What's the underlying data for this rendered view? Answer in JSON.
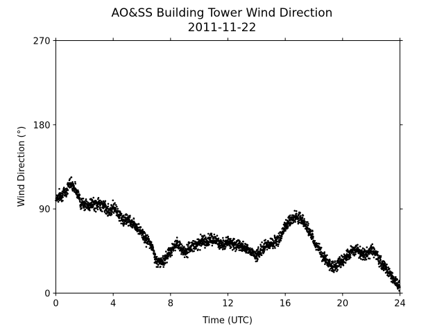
{
  "chart_data": {
    "type": "scatter",
    "title": "AO&SS Building Tower Wind Direction",
    "subtitle": "2011-11-22",
    "xlabel": "Time (UTC)",
    "ylabel": "Wind Direction (°)",
    "xlim": [
      0,
      24
    ],
    "ylim": [
      0,
      270
    ],
    "xticks": [
      0,
      4,
      8,
      12,
      16,
      20,
      24
    ],
    "yticks": [
      0,
      90,
      180,
      270
    ],
    "grid": false,
    "point_color": "#000000",
    "series": [
      {
        "x": [
          0,
          0.25,
          0.5,
          0.75,
          1.0,
          1.25,
          1.5,
          1.75,
          2.0,
          2.25,
          2.5,
          2.75,
          3.0,
          3.25,
          3.5,
          3.75,
          4.0,
          4.25,
          4.5,
          4.75,
          5.0,
          5.25,
          5.5,
          5.75,
          6.0,
          6.25,
          6.5,
          6.75,
          7.0,
          7.25,
          7.5,
          7.75,
          8.0,
          8.25,
          8.5,
          8.75,
          9.0,
          9.25,
          9.5,
          9.75,
          10.0,
          10.25,
          10.5,
          10.75,
          11.0,
          11.25,
          11.5,
          11.75,
          12.0,
          12.25,
          12.5,
          12.75,
          13.0,
          13.25,
          13.5,
          13.75,
          14.0,
          14.25,
          14.5,
          14.75,
          15.0,
          15.25,
          15.5,
          15.75,
          16.0,
          16.25,
          16.5,
          16.75,
          17.0,
          17.25,
          17.5,
          17.75,
          18.0,
          18.25,
          18.5,
          18.75,
          19.0,
          19.25,
          19.5,
          19.75,
          20.0,
          20.25,
          20.5,
          20.75,
          21.0,
          21.25,
          21.5,
          21.75,
          22.0,
          22.25,
          22.5,
          22.75,
          23.0,
          23.25,
          23.5,
          23.75,
          24.0
        ],
        "y": [
          101,
          104,
          106,
          110,
          119,
          114,
          108,
          96,
          95,
          93,
          96,
          94,
          96,
          94,
          91,
          87,
          93,
          88,
          82,
          77,
          79,
          76,
          74,
          69,
          64,
          58,
          55,
          48,
          34,
          33,
          34,
          40,
          46,
          49,
          52,
          48,
          44,
          47,
          50,
          52,
          53,
          56,
          55,
          57,
          57,
          55,
          52,
          54,
          55,
          53,
          52,
          52,
          50,
          49,
          46,
          43,
          40,
          44,
          49,
          52,
          53,
          55,
          57,
          62,
          73,
          77,
          79,
          82,
          80,
          77,
          71,
          64,
          56,
          49,
          43,
          37,
          32,
          29,
          29,
          32,
          35,
          38,
          42,
          45,
          46,
          43,
          42,
          42,
          46,
          44,
          37,
          31,
          27,
          22,
          17,
          11,
          7
        ]
      }
    ]
  }
}
